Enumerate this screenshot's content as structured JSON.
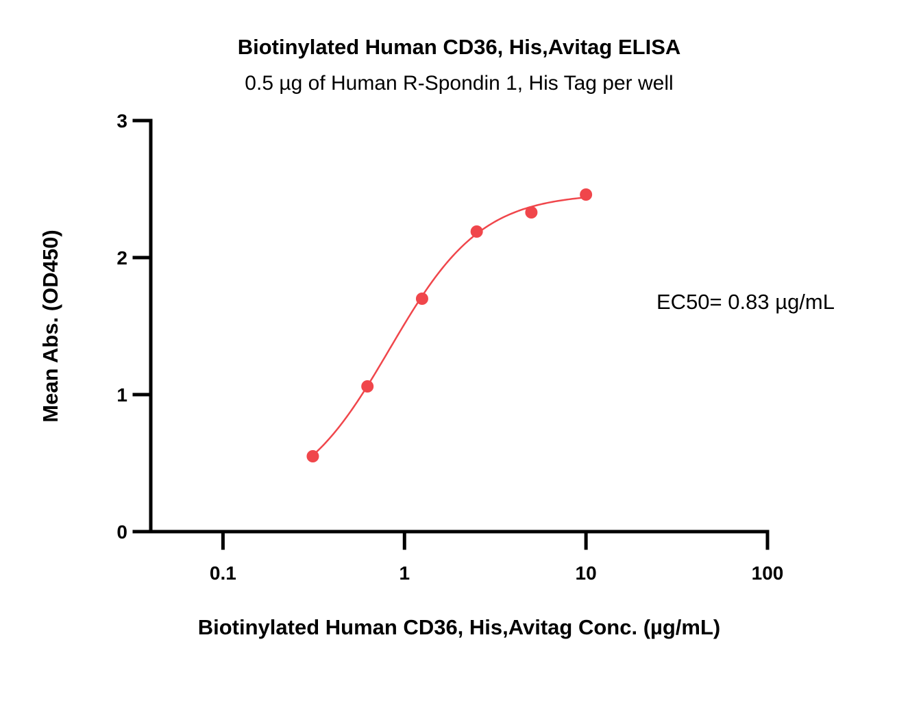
{
  "chart_data": {
    "type": "scatter",
    "title": "Biotinylated Human CD36, His,Avitag ELISA",
    "subtitle": "0.5 µg of Human R-Spondin 1, His Tag per well",
    "xlabel": "Biotinylated Human CD36, His,Avitag Conc. (µg/mL)",
    "ylabel": "Mean Abs. (OD450)",
    "xscale": "log",
    "xlim": [
      0.04,
      100
    ],
    "ylim": [
      0,
      3
    ],
    "x_ticks": [
      0.1,
      1,
      10,
      100
    ],
    "x_tick_labels": [
      "0.1",
      "1",
      "10",
      "100"
    ],
    "y_ticks": [
      0,
      1,
      2,
      3
    ],
    "y_tick_labels": [
      "0",
      "1",
      "2",
      "3"
    ],
    "grid": false,
    "legend": "none",
    "color": "#f0464b",
    "series": [
      {
        "x": [
          0.3125,
          0.625,
          1.25,
          2.5,
          5,
          10
        ],
        "y": [
          0.55,
          1.06,
          1.7,
          2.19,
          2.33,
          2.46
        ]
      }
    ],
    "fit": {
      "model": "4PL",
      "bottom": 0.2,
      "top": 2.47,
      "ec50": 0.83,
      "hill": 1.72
    },
    "annotation": "EC50= 0.83 µg/mL"
  }
}
